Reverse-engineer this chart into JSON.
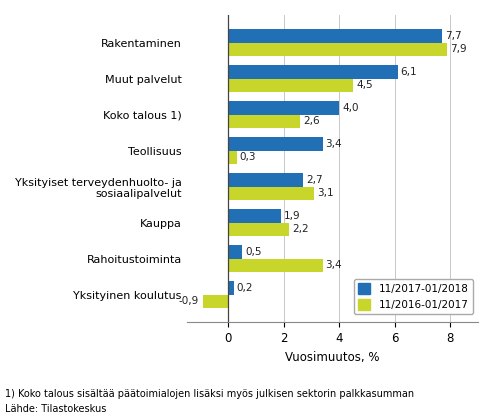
{
  "categories": [
    "Rakentaminen",
    "Muut palvelut",
    "Koko talous 1)",
    "Teollisuus",
    "Yksityiset terveydenhuolto- ja\nsosiaalipalvelut",
    "Kauppa",
    "Rahoitustoiminta",
    "Yksityinen koulutus"
  ],
  "series1_values": [
    7.7,
    6.1,
    4.0,
    3.4,
    2.7,
    1.9,
    0.5,
    0.2
  ],
  "series2_values": [
    7.9,
    4.5,
    2.6,
    0.3,
    3.1,
    2.2,
    3.4,
    -0.9
  ],
  "series1_color": "#2170b5",
  "series2_color": "#c8d62b",
  "series1_label": "11/2017-01/2018",
  "series2_label": "11/2016-01/2017",
  "xlabel": "Vuosimuutos, %",
  "xlim": [
    -1.5,
    9.0
  ],
  "footnote1": "1) Koko talous sisältää päätoimialojen lisäksi myös julkisen sektorin palkkasumman",
  "footnote2": "Lähde: Tilastokeskus",
  "bar_height": 0.38,
  "background_color": "#ffffff",
  "grid_color": "#c8c8c8"
}
